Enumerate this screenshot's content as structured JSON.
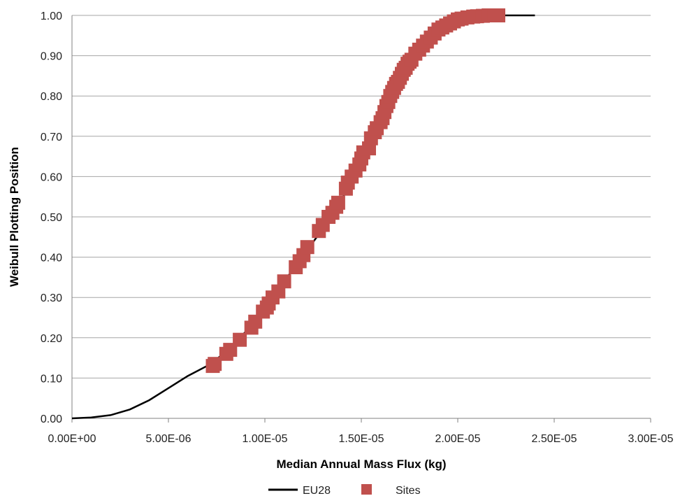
{
  "chart_data": {
    "type": "scatter",
    "title": "",
    "xlabel": "Median Annual Mass Flux (kg)",
    "ylabel": "Weibull Plotting Position",
    "xlim": [
      0,
      3e-05
    ],
    "ylim": [
      0,
      1.0
    ],
    "x_ticks": [
      "0.00E+00",
      "5.00E-06",
      "1.00E-05",
      "1.50E-05",
      "2.00E-05",
      "2.50E-05",
      "3.00E-05"
    ],
    "y_ticks": [
      "0.00",
      "0.10",
      "0.20",
      "0.30",
      "0.40",
      "0.50",
      "0.60",
      "0.70",
      "0.80",
      "0.90",
      "1.00"
    ],
    "grid": "horizontal",
    "legend_position": "bottom",
    "series": [
      {
        "name": "EU28",
        "kind": "line",
        "color": "#000000",
        "x": [
          0,
          1e-06,
          2e-06,
          3e-06,
          4e-06,
          5e-06,
          6e-06,
          7e-06,
          8e-06,
          9e-06,
          1e-05,
          1.1e-05,
          1.2e-05,
          1.3e-05,
          1.4e-05,
          1.5e-05,
          1.6e-05,
          1.7e-05,
          1.8e-05,
          1.9e-05,
          2e-05,
          2.1e-05,
          2.2e-05,
          2.3e-05,
          2.4e-05
        ],
        "y": [
          0.0,
          0.002,
          0.008,
          0.022,
          0.045,
          0.075,
          0.105,
          0.13,
          0.165,
          0.215,
          0.28,
          0.34,
          0.405,
          0.47,
          0.545,
          0.63,
          0.72,
          0.82,
          0.91,
          0.965,
          0.99,
          0.998,
          1.0,
          1.0,
          1.0
        ]
      },
      {
        "name": "Sites",
        "kind": "markers",
        "color": "#C0504D",
        "x": [
          7.3e-06,
          7.4e-06,
          8e-06,
          8.2e-06,
          8.7e-06,
          9.3e-06,
          9.5e-06,
          9.9e-06,
          1.01e-05,
          1.02e-05,
          1.04e-05,
          1.07e-05,
          1.1e-05,
          1.16e-05,
          1.18e-05,
          1.2e-05,
          1.22e-05,
          1.28e-05,
          1.3e-05,
          1.33e-05,
          1.35e-05,
          1.37e-05,
          1.38e-05,
          1.42e-05,
          1.43e-05,
          1.45e-05,
          1.47e-05,
          1.49e-05,
          1.5e-05,
          1.51e-05,
          1.54e-05,
          1.55e-05,
          1.57e-05,
          1.58e-05,
          1.6e-05,
          1.61e-05,
          1.62e-05,
          1.63e-05,
          1.64e-05,
          1.65e-05,
          1.66e-05,
          1.67e-05,
          1.68e-05,
          1.69e-05,
          1.7e-05,
          1.71e-05,
          1.72e-05,
          1.73e-05,
          1.74e-05,
          1.75e-05,
          1.76e-05,
          1.78e-05,
          1.8e-05,
          1.82e-05,
          1.84e-05,
          1.86e-05,
          1.88e-05,
          1.9e-05,
          1.92e-05,
          1.94e-05,
          1.96e-05,
          1.98e-05,
          2e-05,
          2.02e-05,
          2.05e-05,
          2.08e-05,
          2.1e-05,
          2.13e-05,
          2.16e-05,
          2.19e-05,
          2.21e-05
        ],
        "y": [
          0.13,
          0.135,
          0.16,
          0.17,
          0.195,
          0.225,
          0.24,
          0.265,
          0.275,
          0.285,
          0.3,
          0.315,
          0.34,
          0.375,
          0.39,
          0.405,
          0.425,
          0.465,
          0.48,
          0.5,
          0.51,
          0.525,
          0.535,
          0.57,
          0.585,
          0.6,
          0.615,
          0.63,
          0.645,
          0.66,
          0.67,
          0.695,
          0.71,
          0.72,
          0.735,
          0.745,
          0.76,
          0.775,
          0.785,
          0.8,
          0.81,
          0.82,
          0.83,
          0.835,
          0.845,
          0.855,
          0.865,
          0.87,
          0.88,
          0.885,
          0.89,
          0.905,
          0.915,
          0.925,
          0.935,
          0.945,
          0.955,
          0.965,
          0.97,
          0.975,
          0.98,
          0.985,
          0.99,
          0.992,
          0.995,
          0.997,
          0.998,
          0.999,
          1.0,
          1.0,
          1.0
        ]
      }
    ]
  }
}
